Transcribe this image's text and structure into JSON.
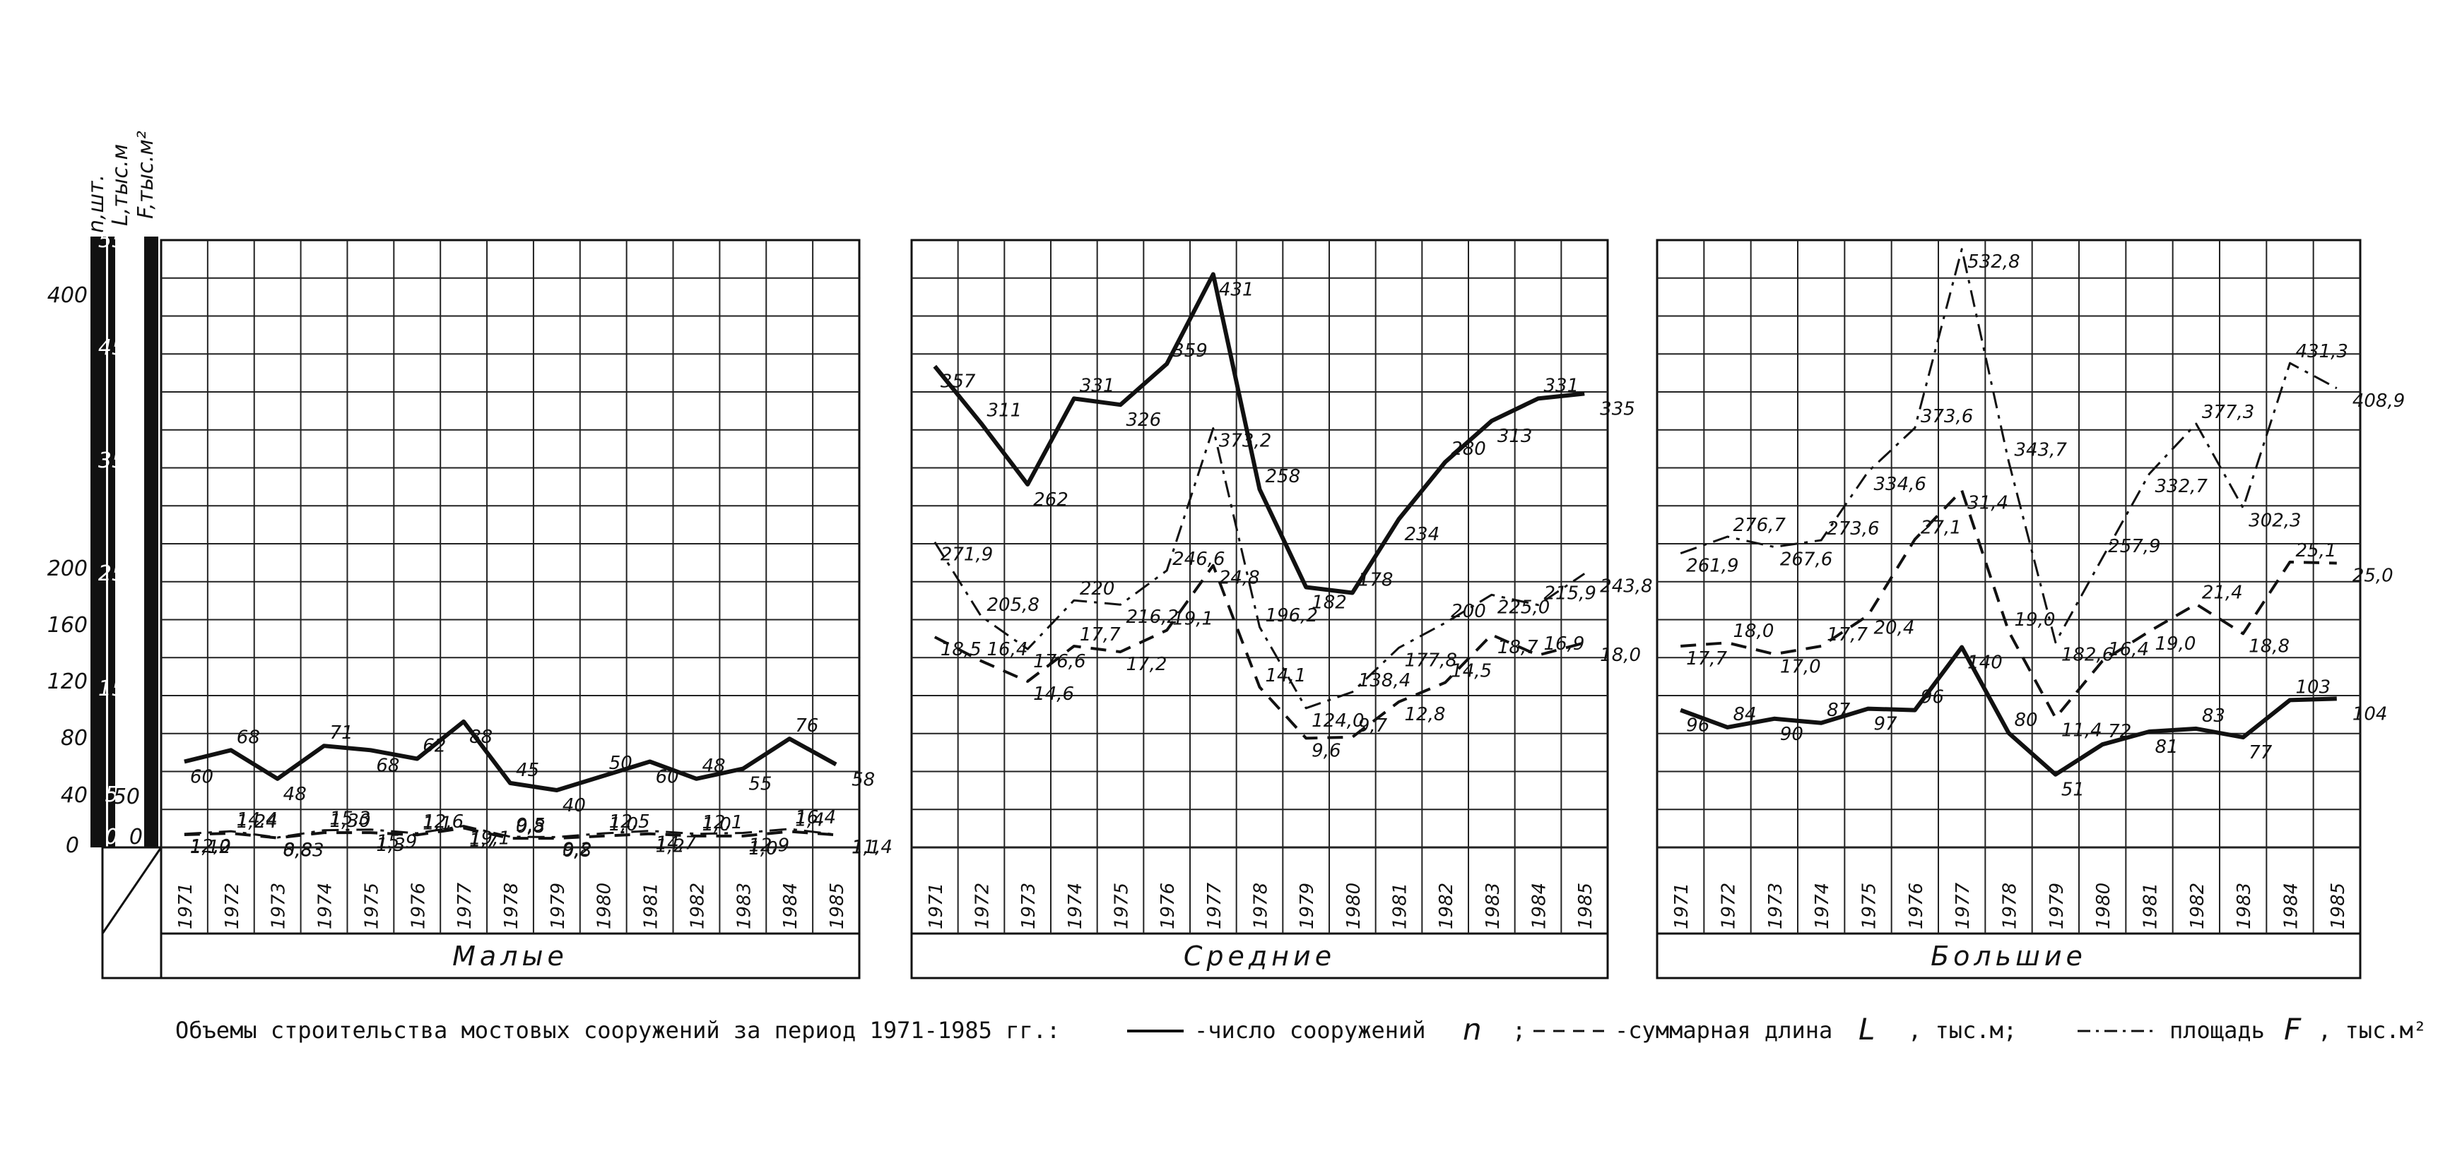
{
  "caption": {
    "text": "Объемы строительства мостовых сооружений за период 1971-1985 гг.:",
    "legend_n": "-число сооружений",
    "sym_n": "n",
    "sep1": ";",
    "legend_l": "-суммарная длина",
    "sym_l": "L",
    "unit_l": ", тыс.м;",
    "legend_f": "площадь",
    "sym_f": "F",
    "unit_f": ", тыс.м²"
  },
  "axes": {
    "n_label": "n,шт.",
    "l_label": "L,тыс.м",
    "f_label": "F,тыс.м²",
    "n_ticks": [
      "0",
      "40",
      "80",
      "120",
      "160",
      "200",
      "400"
    ],
    "l_ticks": [
      "0",
      "5",
      "15",
      "25",
      "35",
      "45",
      "55"
    ],
    "f_ticks": [
      "0",
      "50"
    ]
  },
  "chart_data": {
    "type": "line",
    "years": [
      "1971",
      "1972",
      "1973",
      "1974",
      "1975",
      "1976",
      "1977",
      "1978",
      "1979",
      "1980",
      "1981",
      "1982",
      "1983",
      "1984",
      "1985"
    ],
    "panels": [
      {
        "name": "Малые",
        "series": [
          {
            "name": "n",
            "values": [
              60,
              68,
              48,
              71,
              68,
              62,
              88,
              45,
              40,
              50,
              60,
              48,
              55,
              76,
              58
            ],
            "labels": [
              "60",
              "68",
              "48",
              "71",
              "68",
              "62",
              "88",
              "45",
              "40",
              "50",
              "60",
              "48",
              "55",
              "76",
              "58"
            ]
          },
          {
            "name": "L",
            "values": [
              1.12,
              1.24,
              0.83,
              1.3,
              1.3,
              1.1,
              1.7,
              0.8,
              0.8,
              1.0,
              1.2,
              1.0,
              1.0,
              1.4,
              1.1
            ],
            "labels": [
              "1,12",
              "1,24",
              "0,83",
              "1,30",
              "1,3",
              "1,1",
              "1,7",
              "0,8",
              "0,8",
              "1,0",
              "1,2",
              "1,0",
              "1,0",
              "1,4",
              "1,1"
            ]
          },
          {
            "name": "F",
            "values": [
              12.0,
              14.4,
              8.8,
              15.3,
              15.9,
              12.6,
              19.1,
              9.5,
              9.2,
              12.5,
              14.7,
              12.1,
              12.9,
              16.4,
              11.4
            ],
            "labels": [
              "12,0",
              "14,4",
              "8,8",
              "15,3",
              "15,9",
              "12,6",
              "19,1",
              "9,5",
              "9,2",
              "12,5",
              "14,7",
              "12,1",
              "12,9",
              "16,4",
              "11,4"
            ]
          }
        ]
      },
      {
        "name": "Средние",
        "series": [
          {
            "name": "n",
            "values": [
              357,
              311,
              262,
              331,
              326,
              359,
              431,
              258,
              182,
              178,
              234,
              280,
              313,
              331,
              335
            ],
            "labels": [
              "357",
              "311",
              "262",
              "331",
              "326",
              "359",
              "431",
              "258",
              "182",
              "178",
              "234",
              "280",
              "313",
              "331",
              "335"
            ]
          },
          {
            "name": "L",
            "values": [
              18.5,
              16.4,
              14.6,
              17.7,
              17.2,
              19.1,
              24.8,
              14.1,
              9.6,
              9.7,
              12.8,
              14.5,
              18.7,
              16.9,
              18.0
            ],
            "labels": [
              "18,5",
              "16,4",
              "14,6",
              "17,7",
              "17,2",
              "19,1",
              "24,8",
              "14,1",
              "9,6",
              "9,7",
              "12,8",
              "14,5",
              "18,7",
              "16,9",
              "18,0"
            ]
          },
          {
            "name": "F",
            "values": [
              271.9,
              205.8,
              176.6,
              220,
              216.2,
              246.6,
              373.2,
              196.2,
              124.0,
              138.4,
              177.8,
              200,
              225.0,
              215.9,
              243.8
            ],
            "labels": [
              "271,9",
              "205,8",
              "176,6",
              "220",
              "216,2",
              "246,6",
              "373,2",
              "196,2",
              "124,0",
              "138,4",
              "177,8",
              "200",
              "225,0",
              "215,9",
              "243,8"
            ]
          }
        ]
      },
      {
        "name": "Большие",
        "series": [
          {
            "name": "n",
            "values": [
              96,
              84,
              90,
              87,
              97,
              96,
              140,
              80,
              51,
              72,
              81,
              83,
              77,
              103,
              104
            ],
            "labels": [
              "96",
              "84",
              "90",
              "87",
              "97",
              "96",
              "140",
              "80",
              "51",
              "72",
              "81",
              "83",
              "77",
              "103",
              "104"
            ]
          },
          {
            "name": "L",
            "values": [
              17.7,
              18.0,
              17.0,
              17.7,
              20.4,
              27.1,
              31.4,
              19.0,
              11.4,
              16.4,
              19.0,
              21.4,
              18.8,
              25.1,
              25.0
            ],
            "labels": [
              "17,7",
              "18,0",
              "17,0",
              "17,7",
              "20,4",
              "27,1",
              "31,4",
              "19,0",
              "11,4",
              "16,4",
              "19,0",
              "21,4",
              "18,8",
              "25,1",
              "25,0"
            ]
          },
          {
            "name": "F",
            "values": [
              261.9,
              276.7,
              267.6,
              273.6,
              334.6,
              373.6,
              532.8,
              343.7,
              182.6,
              257.9,
              332.7,
              377.3,
              302.3,
              431.3,
              408.9
            ],
            "labels": [
              "261,9",
              "276,7",
              "267,6",
              "273,6",
              "334,6",
              "373,6",
              "532,8",
              "343,7",
              "182,6",
              "257,9",
              "332,7",
              "377,3",
              "302,3",
              "431,3",
              "408,9"
            ]
          }
        ]
      }
    ]
  }
}
